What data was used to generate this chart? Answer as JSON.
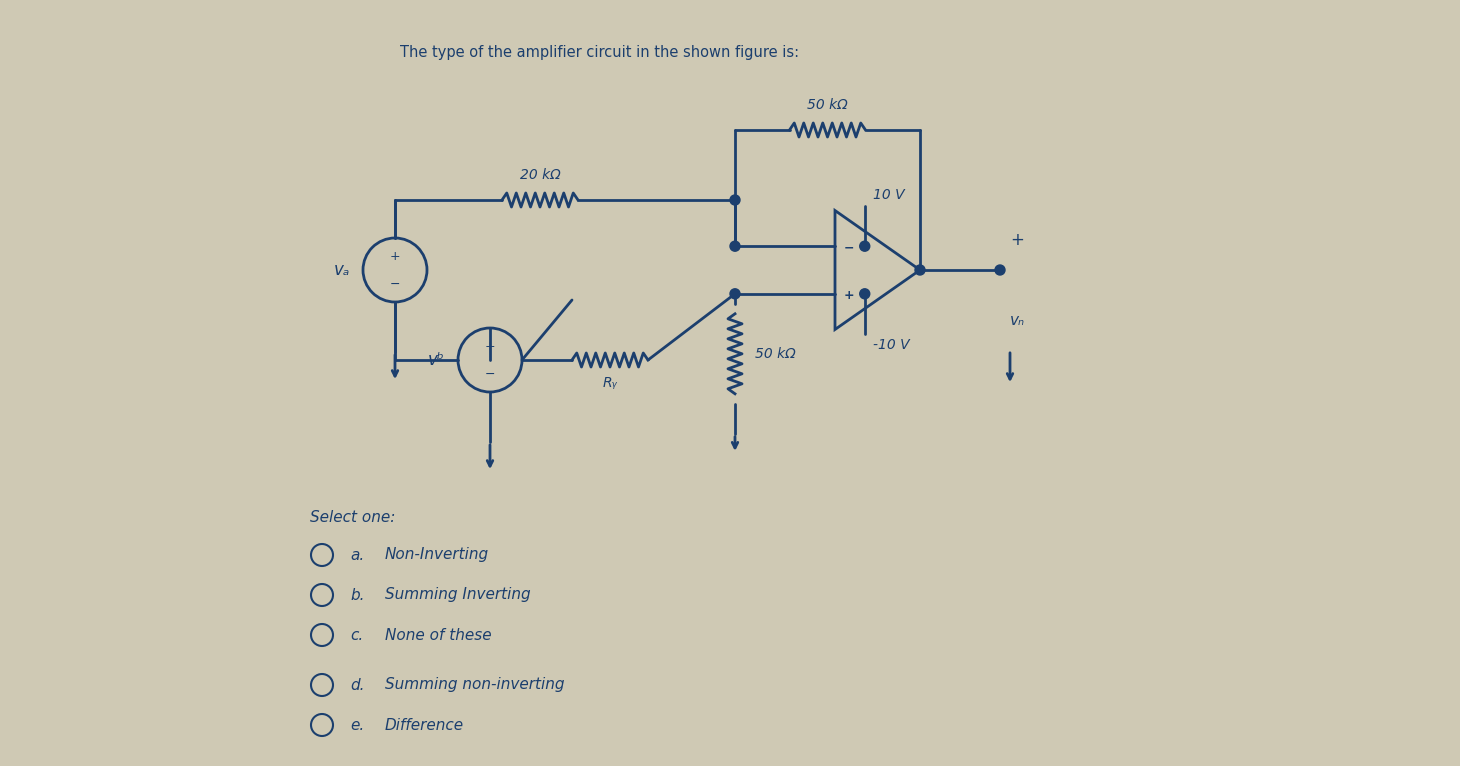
{
  "bg_color": "#cfc9b4",
  "text_color": "#1c3f6e",
  "title": "The type of the amplifier circuit in the shown figure is:",
  "title_fontsize": 10.5,
  "labels": {
    "50k_top": "50 kΩ",
    "20k": "20 kΩ",
    "Ry": "Rᵧ",
    "50k_bot": "50 kΩ",
    "10V": "10 V",
    "neg10V": "-10 V",
    "va": "vₐ",
    "vb": "vᵇ",
    "vo": "vₙ"
  },
  "select_one": "Select one:",
  "options": [
    {
      "label": "a.",
      "text": "Non-Inverting"
    },
    {
      "label": "b.",
      "text": "Summing Inverting"
    },
    {
      "label": "c.",
      "text": "None of these"
    },
    {
      "label": "d.",
      "text": "Summing non-inverting"
    },
    {
      "label": "e.",
      "text": "Difference"
    }
  ]
}
